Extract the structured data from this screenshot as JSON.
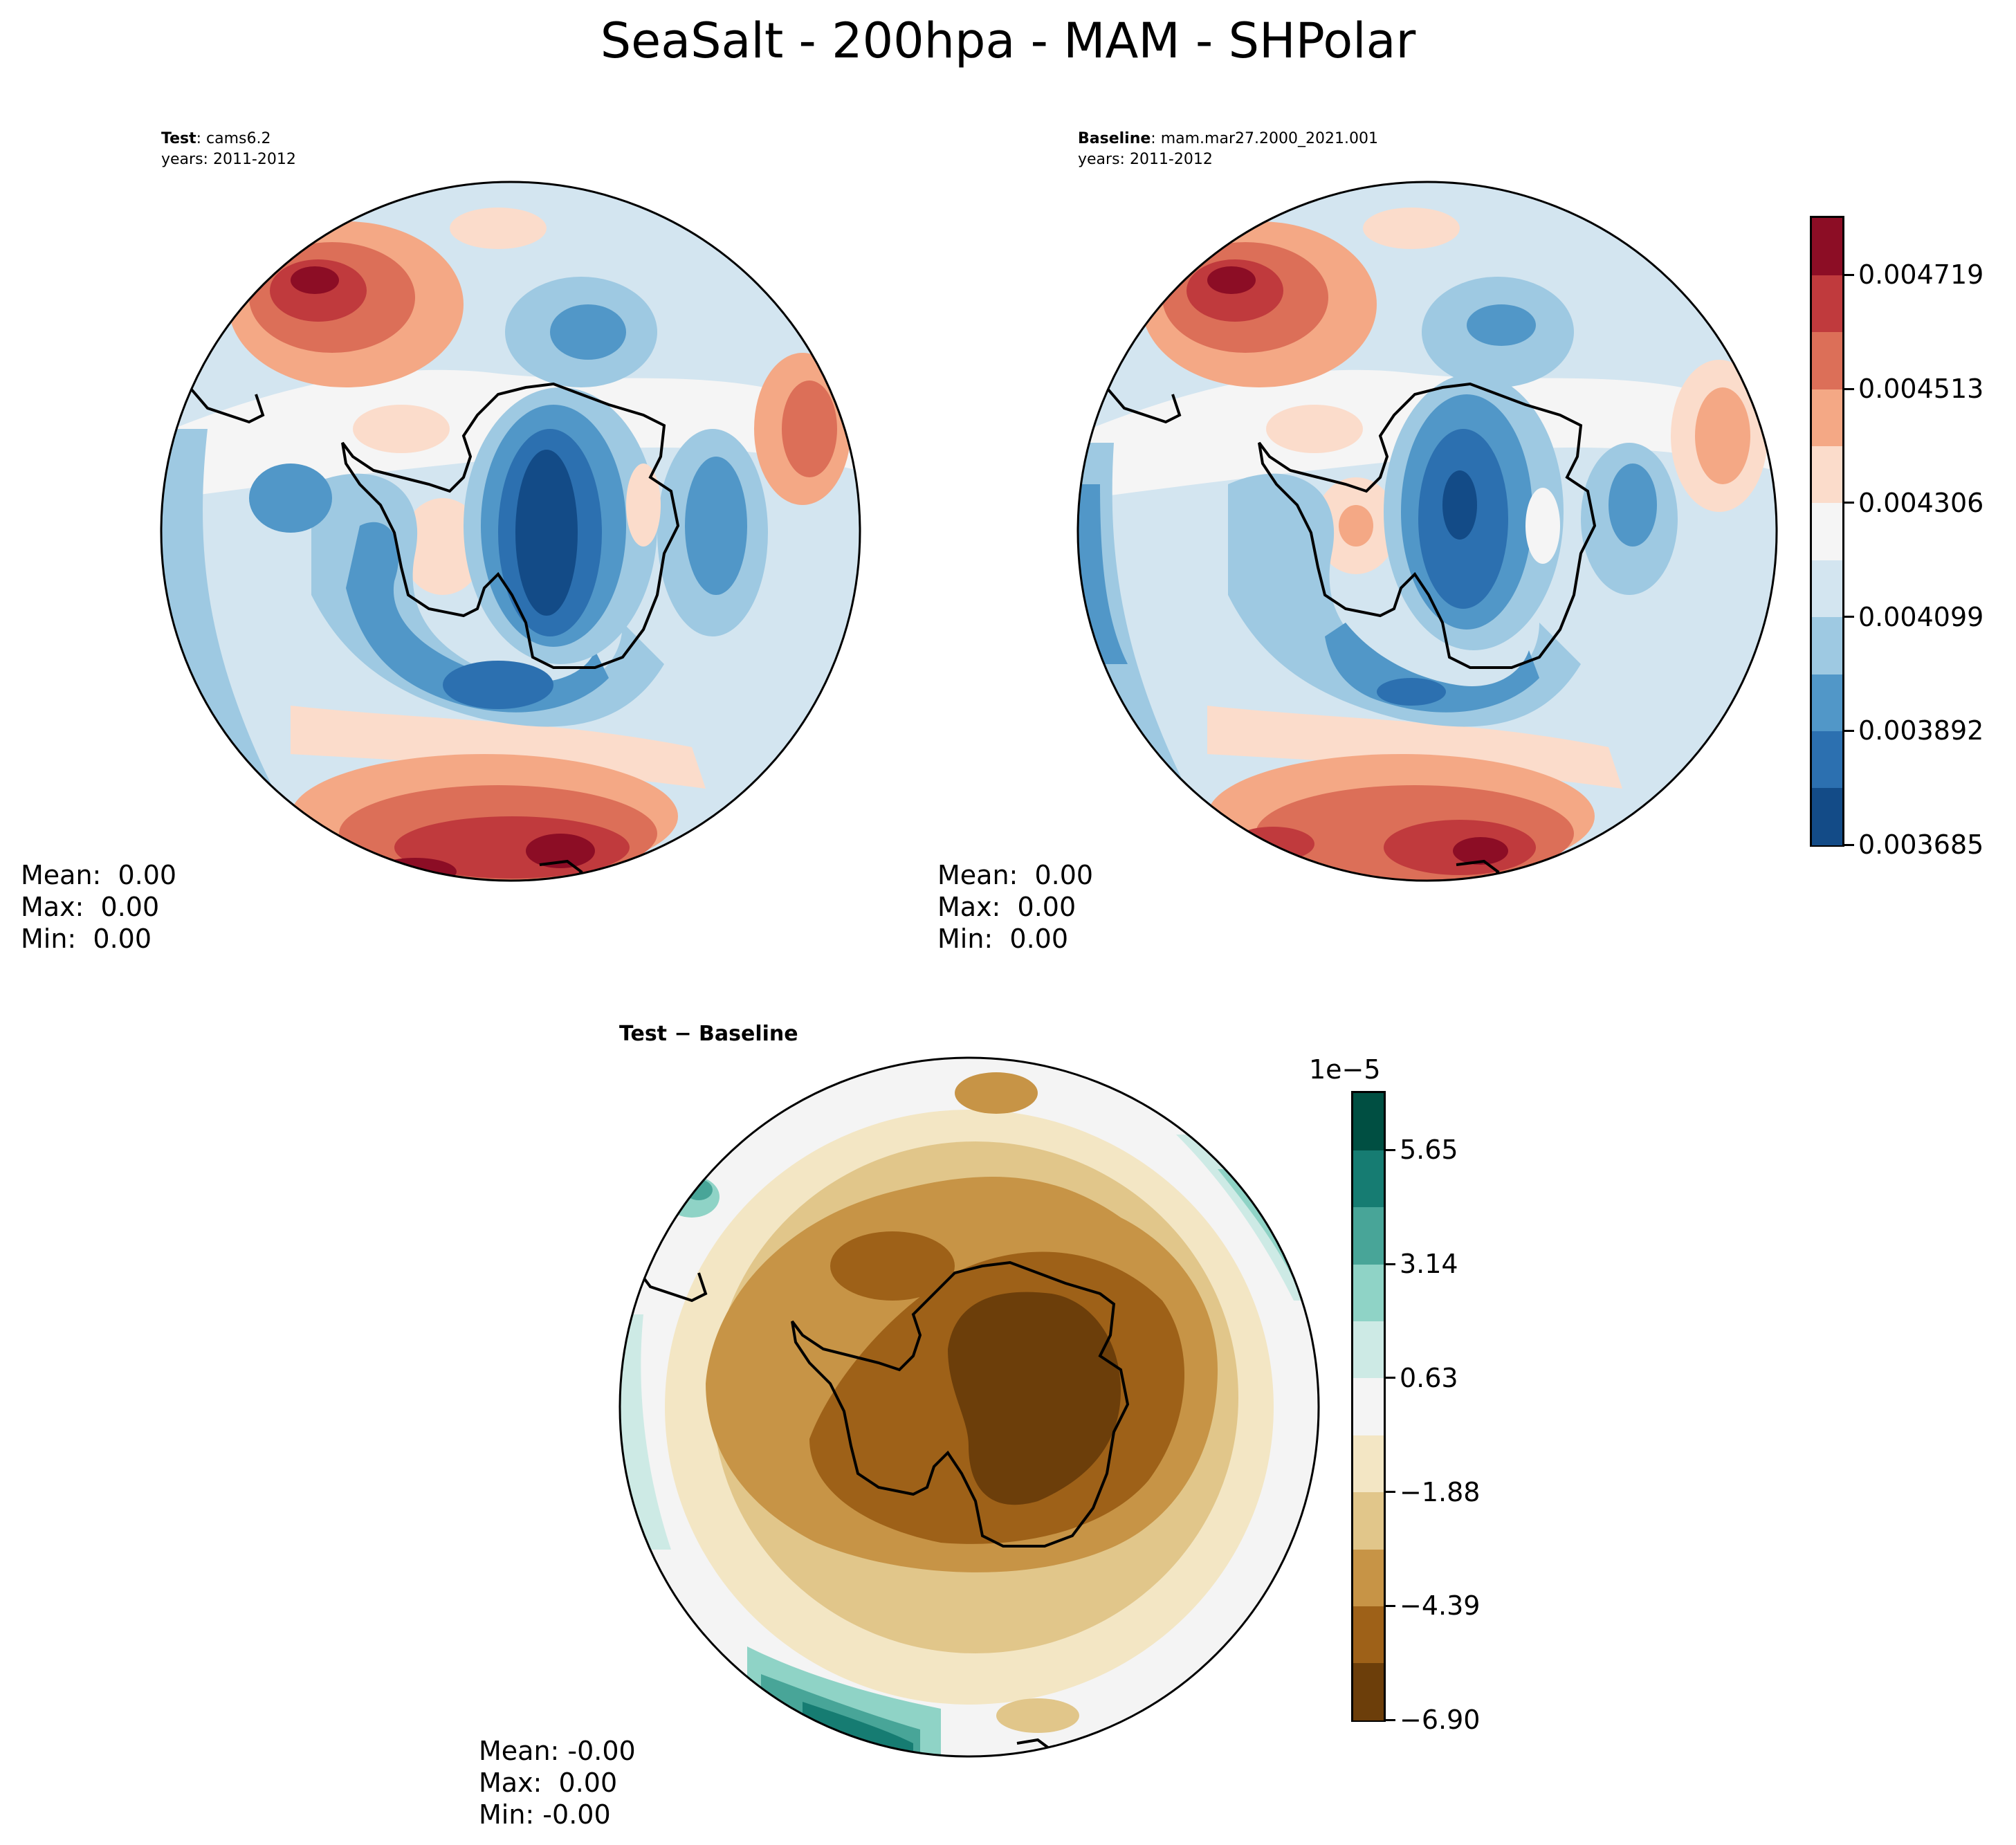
{
  "figure": {
    "title": "SeaSalt - 200hpa - MAM - SHPolar"
  },
  "chart_data": [
    {
      "type": "heatmap",
      "projection": "south-polar-stereographic",
      "panel": "test",
      "label_bold": "Test",
      "label_rest": ": cams6.2",
      "years": "years: 2011-2012",
      "stats": {
        "mean": "Mean:  0.00",
        "max": "Max:  0.00",
        "min": "Min:  0.00"
      },
      "colormap": "RdBu_r",
      "colorbar_levels": [
        0.003685,
        0.003788,
        0.003892,
        0.003995,
        0.004099,
        0.004202,
        0.004306,
        0.004409,
        0.004513,
        0.004616,
        0.004719,
        0.004822
      ],
      "colorbar_tick_labels": [
        "0.003685",
        "0.003892",
        "0.004099",
        "0.004306",
        "0.004513",
        "0.004719"
      ]
    },
    {
      "type": "heatmap",
      "projection": "south-polar-stereographic",
      "panel": "baseline",
      "label_bold": "Baseline",
      "label_rest": ": mam.mar27.2000_2021.001",
      "years": "years: 2011-2012",
      "stats": {
        "mean": "Mean:  0.00",
        "max": "Max:  0.00",
        "min": "Min:  0.00"
      },
      "colormap": "RdBu_r",
      "shares_colorbar_with": "test"
    },
    {
      "type": "heatmap",
      "projection": "south-polar-stereographic",
      "panel": "difference",
      "label": "Test − Baseline",
      "stats": {
        "mean": "Mean: -0.00",
        "max": "Max:  0.00",
        "min": "Min: -0.00"
      },
      "colormap": "BrBG",
      "colorbar_offset": "1e−5",
      "colorbar_levels": [
        -6.9,
        -5.65,
        -4.39,
        -3.14,
        -1.88,
        -0.63,
        0.63,
        1.88,
        3.14,
        4.39,
        5.65,
        6.9
      ],
      "colorbar_tick_labels": [
        "−6.90",
        "−4.39",
        "−1.88",
        "0.63",
        "3.14",
        "5.65"
      ]
    }
  ],
  "colors": {
    "rdbu": [
      "#134b87",
      "#2c70b0",
      "#5197c8",
      "#9ec9e2",
      "#d3e5f0",
      "#f5f5f5",
      "#fbdccb",
      "#f4a885",
      "#dc6f58",
      "#c03a3d",
      "#8c0d25"
    ],
    "brbg": [
      "#6c3e0a",
      "#9e6118",
      "#c79446",
      "#e1c68a",
      "#f3e6c4",
      "#f4f4f4",
      "#cdeae5",
      "#8fd3c6",
      "#48a598",
      "#167c72",
      "#004f42"
    ]
  }
}
